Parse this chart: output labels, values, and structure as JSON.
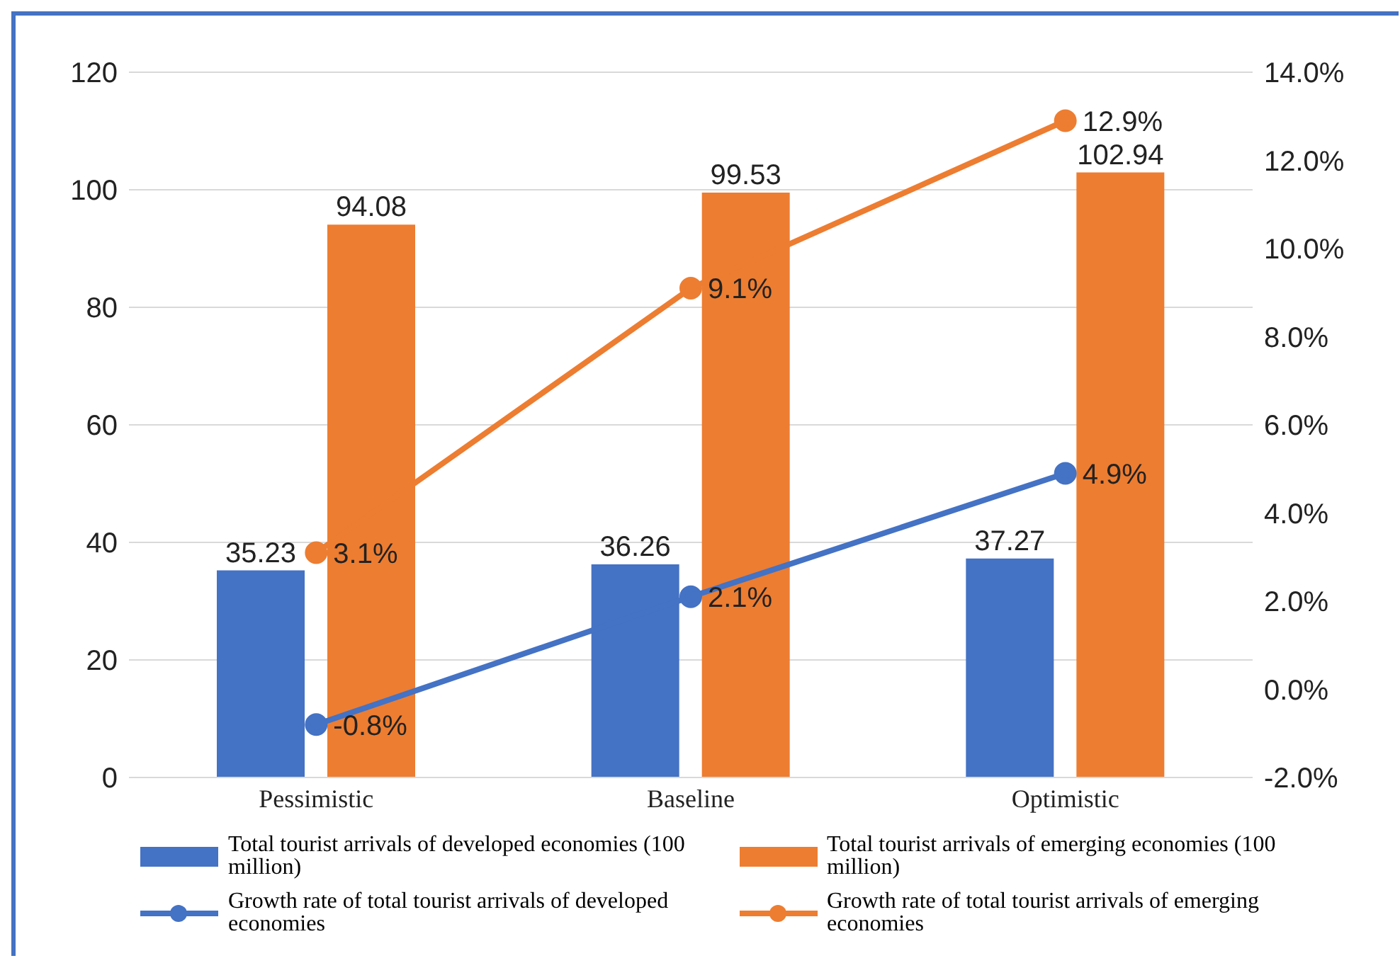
{
  "chart_data": {
    "type": "bar",
    "categories": [
      "Pessimistic",
      "Baseline",
      "Optimistic"
    ],
    "series": [
      {
        "name": "Total tourist arrivals of developed economies (100 million)",
        "color": "#4472c4",
        "values": [
          35.23,
          36.26,
          37.27
        ],
        "value_labels": [
          "35.23",
          "36.26",
          "37.27"
        ]
      },
      {
        "name": "Total tourist arrivals of emerging economies (100 million)",
        "color": "#ed7d31",
        "values": [
          94.08,
          99.53,
          102.94
        ],
        "value_labels": [
          "94.08",
          "99.53",
          "102.94"
        ]
      },
      {
        "name": "Growth rate of total tourist arrivals of developed economies",
        "type": "line",
        "axis": "y2",
        "color": "#4472c4",
        "values": [
          -0.8,
          2.1,
          4.9
        ],
        "value_labels": [
          "-0.8%",
          "2.1%",
          "4.9%"
        ]
      },
      {
        "name": "Growth rate of total tourist arrivals of emerging economies",
        "type": "line",
        "axis": "y2",
        "color": "#ed7d31",
        "values": [
          3.1,
          9.1,
          12.9
        ],
        "value_labels": [
          "3.1%",
          "9.1%",
          "12.9%"
        ]
      }
    ],
    "ylim": [
      0,
      120
    ],
    "yticks": [
      0,
      20,
      40,
      60,
      80,
      100,
      120
    ],
    "y2lim": [
      -2,
      14
    ],
    "y2ticks": [
      {
        "value": -2,
        "label": "-2.0%"
      },
      {
        "value": 0,
        "label": "0.0%"
      },
      {
        "value": 2,
        "label": "2.0%"
      },
      {
        "value": 4,
        "label": "4.0%"
      },
      {
        "value": 6,
        "label": "6.0%"
      },
      {
        "value": 8,
        "label": "8.0%"
      },
      {
        "value": 10,
        "label": "10.0%"
      },
      {
        "value": 12,
        "label": "12.0%"
      },
      {
        "value": 14,
        "label": "14.0%"
      }
    ],
    "grid": "y",
    "legend": "bottom",
    "marker": "circle",
    "line_style": "solid"
  }
}
